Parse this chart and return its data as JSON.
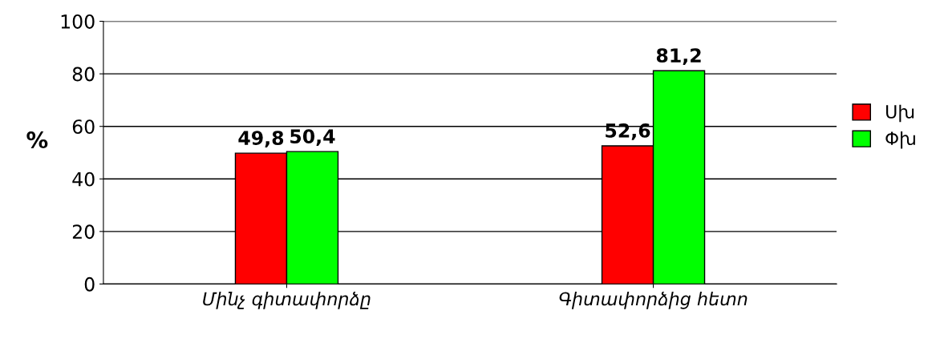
{
  "chart_data": {
    "type": "bar",
    "ylabel": "%",
    "categories": [
      "Մինչ գիտափորձը",
      "Գիտափորձից հետո"
    ],
    "series": [
      {
        "name": "Սխ",
        "color": "#ff0000",
        "values": [
          49.8,
          52.6
        ]
      },
      {
        "name": "Փխ",
        "color": "#00ff00",
        "values": [
          50.4,
          81.2
        ]
      }
    ],
    "value_labels": [
      [
        "49,8",
        "52,6"
      ],
      [
        "50,4",
        "81,2"
      ]
    ],
    "ylim": [
      0,
      100
    ],
    "yticks": [
      0,
      20,
      40,
      60,
      80,
      100
    ],
    "grid": "y",
    "legend": "right"
  }
}
